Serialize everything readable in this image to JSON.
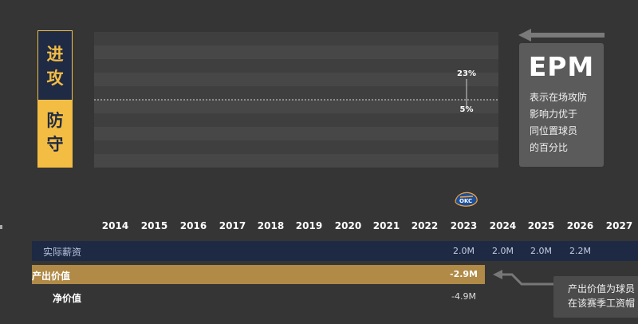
{
  "labels": {
    "offense": [
      "进",
      "攻"
    ],
    "defense": [
      "防",
      "守"
    ]
  },
  "epm": {
    "title": "EPM",
    "description_lines": [
      "表示在场攻防",
      "影响力优于",
      "同位置球员",
      "的百分比"
    ]
  },
  "chart_data": {
    "type": "line",
    "x": [
      "2023"
    ],
    "series": [
      {
        "name": "进攻",
        "values": [
          23
        ]
      },
      {
        "name": "防守",
        "values": [
          5
        ]
      }
    ],
    "value_labels": [
      "23%",
      "5%"
    ],
    "ylim": [
      0,
      100
    ],
    "grid": true
  },
  "team_logo": "okc-thunder-logo",
  "years": [
    "2014",
    "2015",
    "2016",
    "2017",
    "2018",
    "2019",
    "2020",
    "2021",
    "2022",
    "2023",
    "2024",
    "2025",
    "2026",
    "2027"
  ],
  "rows": {
    "salary": {
      "label": "实际薪资",
      "values": [
        "2.0M",
        "2.0M",
        "2.0M",
        "2.2M"
      ]
    },
    "output": {
      "label": "产出价值",
      "value": "-2.9M"
    },
    "net": {
      "label": "净价值",
      "value": "-4.9M"
    }
  },
  "callout": {
    "lines": [
      "产出价值为球员",
      "在该赛季工资帽"
    ]
  },
  "colors": {
    "background": "#353535",
    "gold": "#f3bd43",
    "navy": "#1f2a44",
    "output_bar": "#b08a46"
  }
}
